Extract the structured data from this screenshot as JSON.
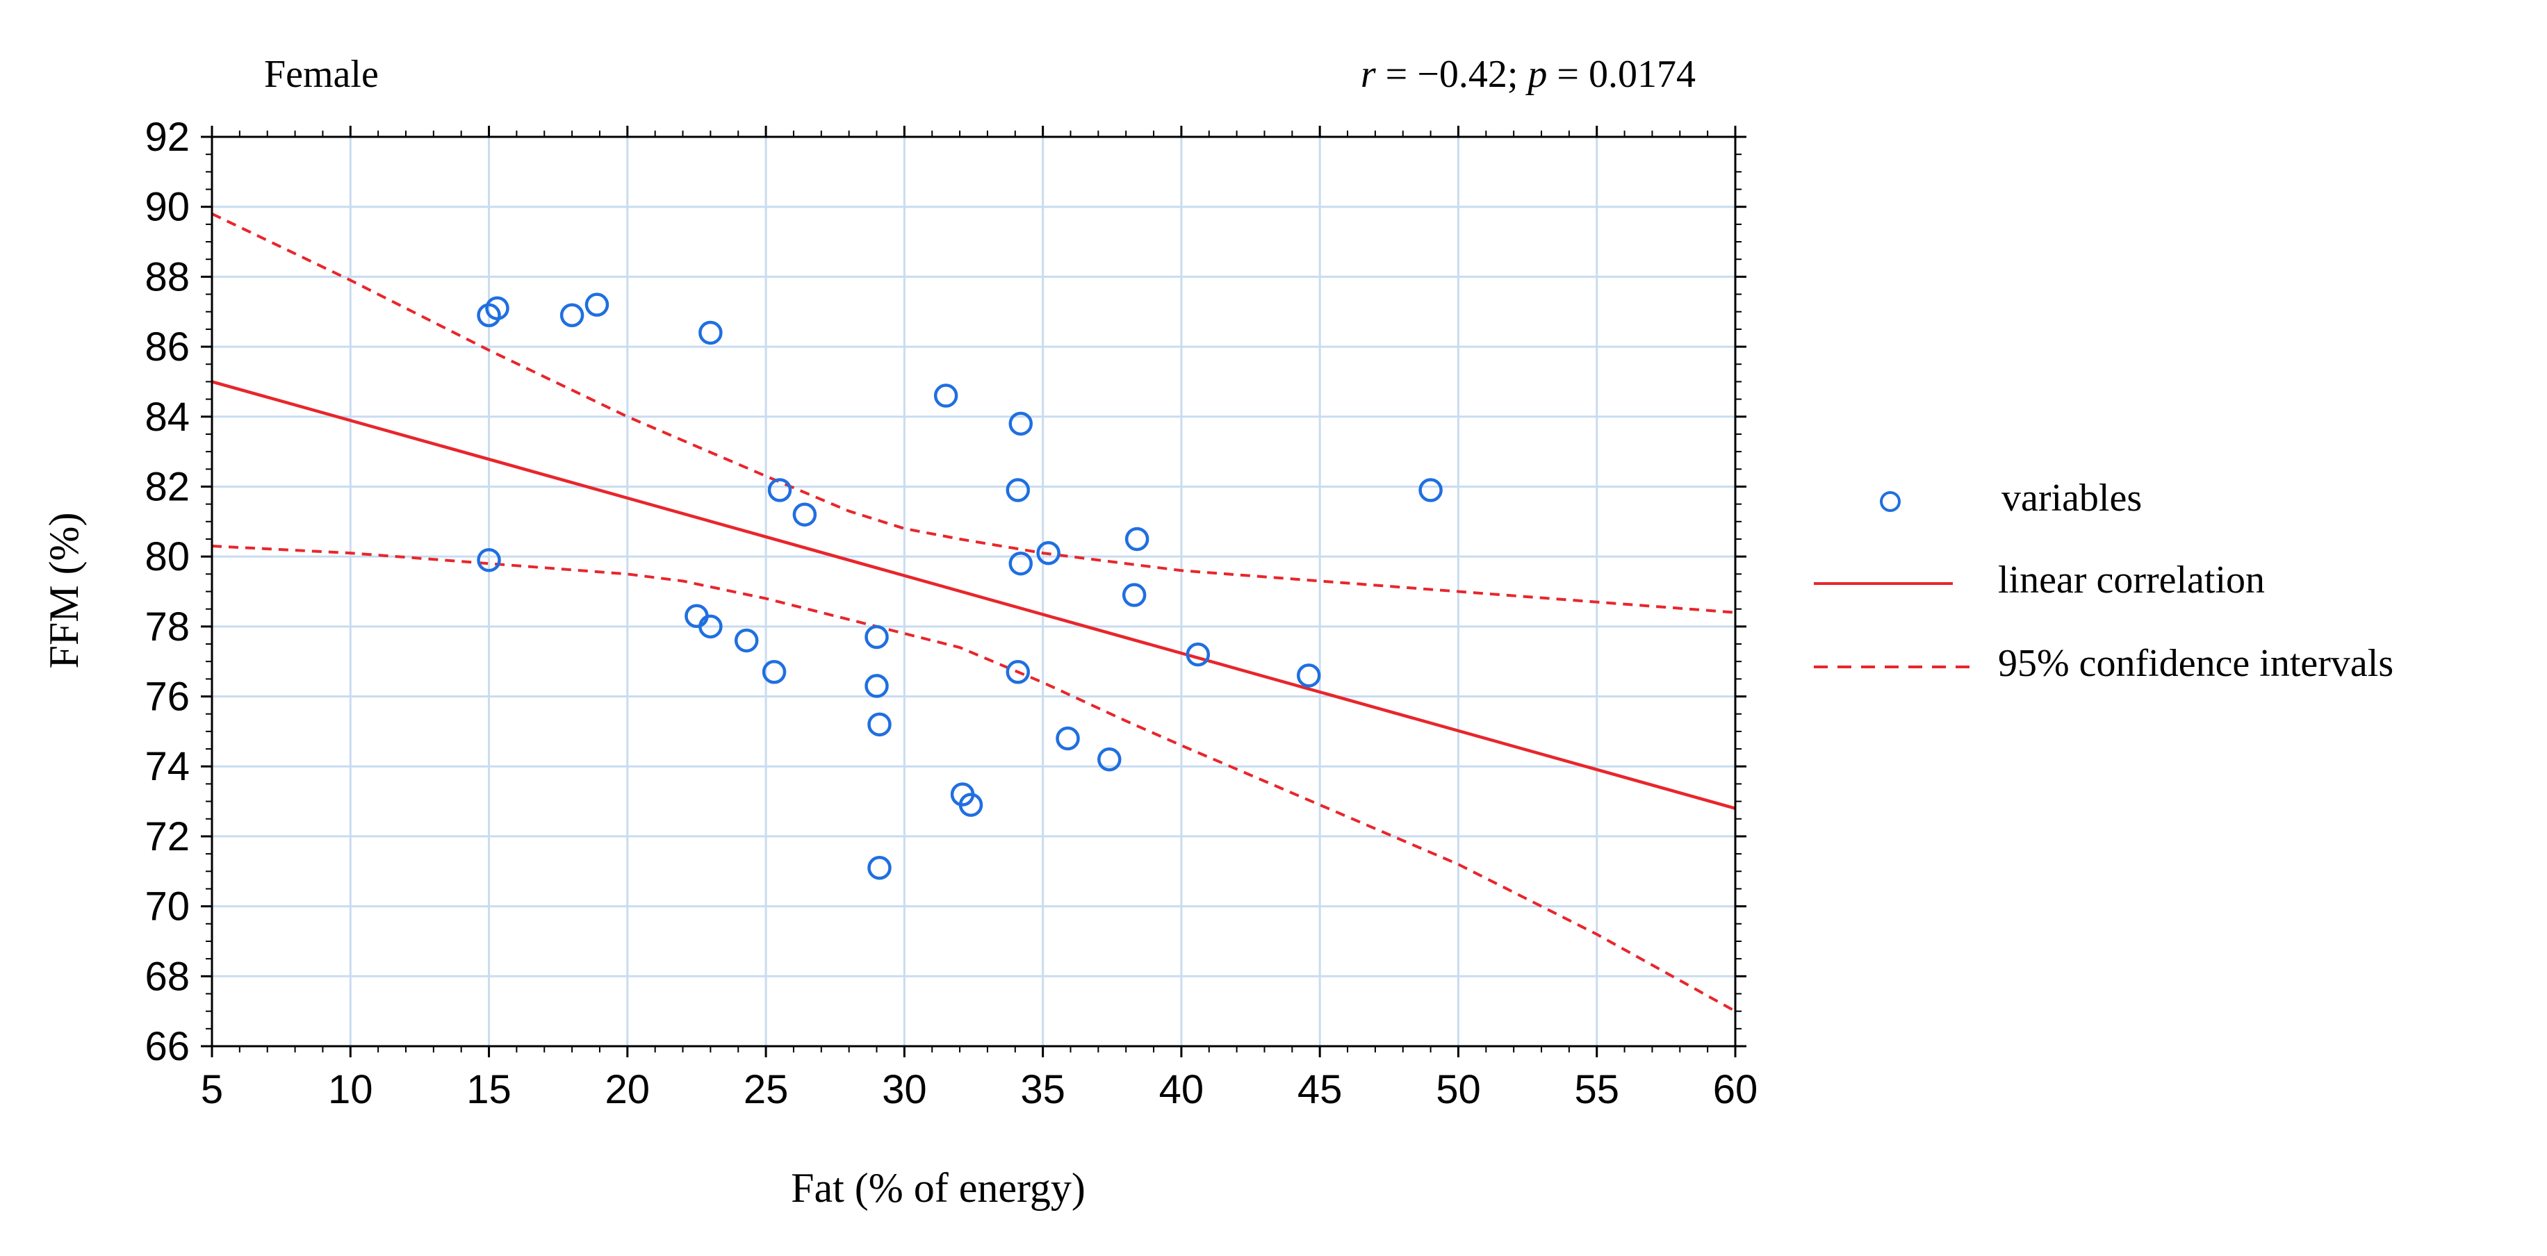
{
  "chart_data": {
    "type": "scatter",
    "panel_label": "Female",
    "stat": {
      "r_symbol": "r",
      "r_text": " = −0.42; ",
      "p_symbol": "p",
      "p_text": " = 0.0174"
    },
    "xlabel": "Fat (% of energy)",
    "ylabel": "FFM (%)",
    "xlim": [
      5,
      60
    ],
    "ylim": [
      66,
      92
    ],
    "xticks": [
      5,
      10,
      15,
      20,
      25,
      30,
      35,
      40,
      45,
      50,
      55,
      60
    ],
    "yticks": [
      66,
      68,
      70,
      72,
      74,
      76,
      78,
      80,
      82,
      84,
      86,
      88,
      90,
      92
    ],
    "grid": true,
    "points": [
      {
        "x": 15.0,
        "y": 86.9
      },
      {
        "x": 15.3,
        "y": 87.1
      },
      {
        "x": 18.0,
        "y": 86.9
      },
      {
        "x": 18.9,
        "y": 87.2
      },
      {
        "x": 23.0,
        "y": 86.4
      },
      {
        "x": 15.0,
        "y": 79.9
      },
      {
        "x": 22.5,
        "y": 78.3
      },
      {
        "x": 23.0,
        "y": 78.0
      },
      {
        "x": 24.3,
        "y": 77.6
      },
      {
        "x": 25.3,
        "y": 76.7
      },
      {
        "x": 25.5,
        "y": 81.9
      },
      {
        "x": 26.4,
        "y": 81.2
      },
      {
        "x": 29.0,
        "y": 77.7
      },
      {
        "x": 29.0,
        "y": 76.3
      },
      {
        "x": 29.1,
        "y": 75.2
      },
      {
        "x": 29.1,
        "y": 71.1
      },
      {
        "x": 31.5,
        "y": 84.6
      },
      {
        "x": 32.1,
        "y": 73.2
      },
      {
        "x": 32.4,
        "y": 72.9
      },
      {
        "x": 34.1,
        "y": 81.9
      },
      {
        "x": 34.1,
        "y": 76.7
      },
      {
        "x": 34.2,
        "y": 83.8
      },
      {
        "x": 34.2,
        "y": 79.8
      },
      {
        "x": 35.2,
        "y": 80.1
      },
      {
        "x": 35.9,
        "y": 74.8
      },
      {
        "x": 37.4,
        "y": 74.2
      },
      {
        "x": 38.3,
        "y": 78.9
      },
      {
        "x": 38.4,
        "y": 80.5
      },
      {
        "x": 40.6,
        "y": 77.2
      },
      {
        "x": 44.6,
        "y": 76.6
      },
      {
        "x": 49.0,
        "y": 81.9
      }
    ],
    "regression": {
      "x": [
        5,
        60
      ],
      "y": [
        85.0,
        72.8
      ]
    },
    "ci_upper": {
      "x": [
        5,
        10,
        15,
        20,
        25,
        28,
        30,
        32,
        35,
        38,
        40,
        45,
        50,
        55,
        60
      ],
      "y": [
        89.8,
        87.9,
        85.9,
        84.0,
        82.3,
        81.3,
        80.8,
        80.5,
        80.1,
        79.8,
        79.6,
        79.3,
        79.0,
        78.7,
        78.4
      ]
    },
    "ci_lower": {
      "x": [
        5,
        10,
        15,
        20,
        22,
        25,
        28,
        30,
        32,
        35,
        38,
        40,
        45,
        50,
        55,
        60
      ],
      "y": [
        80.3,
        80.1,
        79.8,
        79.5,
        79.3,
        78.8,
        78.2,
        77.8,
        77.4,
        76.4,
        75.3,
        74.6,
        72.9,
        71.2,
        69.2,
        67.0
      ]
    },
    "legend": {
      "position": "right",
      "entries": [
        {
          "label": "variables",
          "kind": "marker"
        },
        {
          "label": "linear correlation",
          "kind": "solid"
        },
        {
          "label": "95% confidence intervals",
          "kind": "dashed"
        }
      ]
    },
    "colors": {
      "points": "#1f6fe0",
      "line": "#e8262b",
      "grid": "#c9dcf0",
      "axis": "#000000"
    }
  }
}
